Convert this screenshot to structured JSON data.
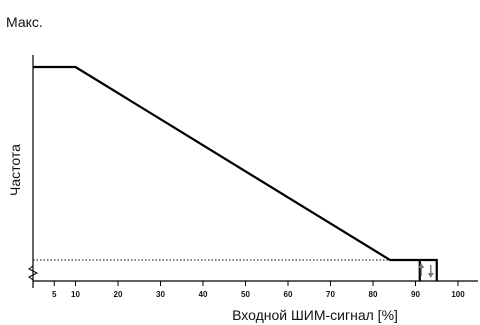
{
  "chart_data": {
    "type": "line",
    "title": "",
    "xlabel": "Входной ШИМ-сигнал [%]",
    "ylabel": "Частота",
    "y_max_label": "Макс.",
    "xlim": [
      0,
      110
    ],
    "x_ticks": [
      5,
      10,
      20,
      30,
      40,
      50,
      60,
      70,
      80,
      90,
      100
    ],
    "y_scale": "relative (Min→Max)",
    "grid": false,
    "legend": "none",
    "series": [
      {
        "x": [
          0,
          10,
          84,
          95,
          95
        ],
        "y": [
          1,
          1,
          0,
          0,
          -0.05
        ],
        "color": "#000000"
      }
    ],
    "hysteresis": {
      "x_from": 91,
      "x_to": 95,
      "arrow_up_x": 91,
      "arrow_down_x": 95,
      "color": "#777777"
    },
    "min_reference_line": {
      "style": "dotted",
      "y": 0
    },
    "axis_break": true
  }
}
